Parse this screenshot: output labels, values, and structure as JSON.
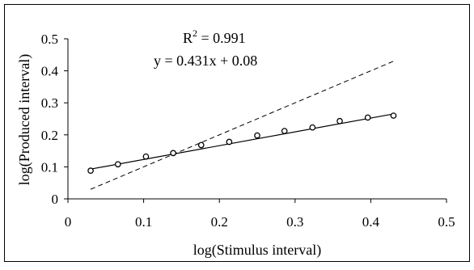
{
  "chart_data": {
    "type": "scatter",
    "title": "",
    "xlabel": "log(Stimulus interval)",
    "ylabel": "log(Produced interval)",
    "xlim": [
      0,
      0.5
    ],
    "ylim": [
      0,
      0.5
    ],
    "x_ticks": [
      "0",
      "0.1",
      "0.2",
      "0.3",
      "0.4",
      "0.5"
    ],
    "y_ticks": [
      "0",
      "0.1",
      "0.2",
      "0.3",
      "0.4",
      "0.5"
    ],
    "x_tick_values": [
      0,
      0.1,
      0.2,
      0.3,
      0.4,
      0.5
    ],
    "y_tick_values": [
      0,
      0.1,
      0.2,
      0.3,
      0.4,
      0.5
    ],
    "grid": false,
    "legend": "none",
    "series": [
      {
        "marker": "open-circle",
        "x": [
          0.03,
          0.066,
          0.103,
          0.139,
          0.176,
          0.213,
          0.25,
          0.286,
          0.323,
          0.359,
          0.396,
          0.43
        ],
        "y": [
          0.088,
          0.108,
          0.132,
          0.143,
          0.168,
          0.178,
          0.198,
          0.212,
          0.223,
          0.243,
          0.254,
          0.26
        ]
      }
    ],
    "fit_line": {
      "slope": 0.431,
      "intercept": 0.08,
      "x_range": [
        0.03,
        0.43
      ],
      "style": "solid"
    },
    "identity_line": {
      "x_range": [
        0.03,
        0.43
      ],
      "style": "dashed"
    },
    "annotations": {
      "r_squared": {
        "prefix": "R",
        "superscript": "2",
        "text": " = 0.991"
      },
      "equation": "y = 0.431x + 0.08"
    }
  }
}
